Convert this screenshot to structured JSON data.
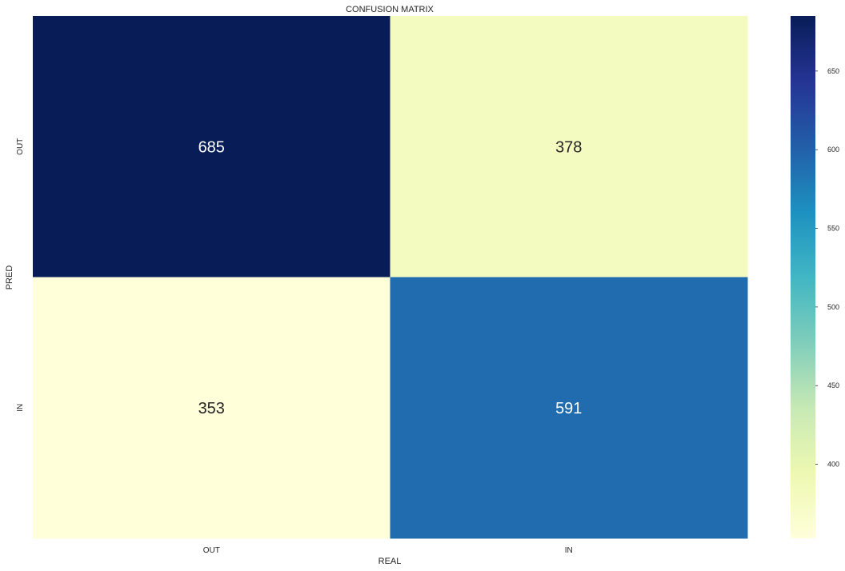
{
  "chart_data": {
    "type": "heatmap",
    "title": "CONFUSION MATRIX",
    "xlabel": "REAL",
    "ylabel": "PRED",
    "x_categories": [
      "OUT",
      "IN"
    ],
    "y_categories": [
      "OUT",
      "IN"
    ],
    "values": [
      [
        685,
        378
      ],
      [
        353,
        591
      ]
    ],
    "colormap": "YlGnBu",
    "colorbar": {
      "vmin": 353,
      "vmax": 685,
      "ticks": [
        400,
        450,
        500,
        550,
        600,
        650
      ]
    },
    "colors": {
      "cell_685": "#081d58",
      "cell_378": "#f1f9bf",
      "cell_353": "#ffffd9",
      "cell_591": "#236db0"
    }
  }
}
